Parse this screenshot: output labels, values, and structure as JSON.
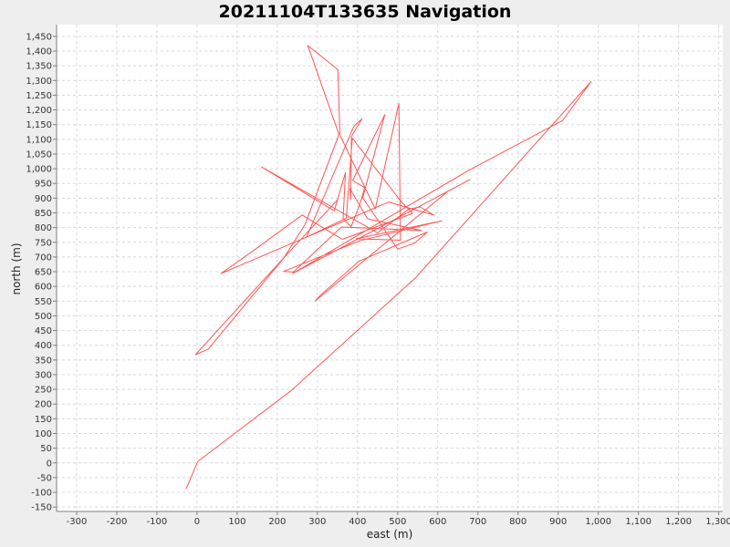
{
  "chart_data": {
    "type": "line",
    "title": "20211104T133635 Navigation",
    "xlabel": "east (m)",
    "ylabel": "north (m)",
    "xlim": [
      -350,
      1310
    ],
    "ylim": [
      -165,
      1490
    ],
    "grid": true,
    "x_ticks": [
      -300,
      -200,
      -100,
      0,
      100,
      200,
      300,
      400,
      500,
      600,
      700,
      800,
      900,
      1000,
      1100,
      1200,
      1300
    ],
    "x_tick_labels": [
      "-300",
      "-200",
      "-100",
      "0",
      "100",
      "200",
      "300",
      "400",
      "500",
      "600",
      "700",
      "800",
      "900",
      "1,000",
      "1,100",
      "1,200",
      "1,300"
    ],
    "y_ticks": [
      -150,
      -100,
      -50,
      0,
      50,
      100,
      150,
      200,
      250,
      300,
      350,
      400,
      450,
      500,
      550,
      600,
      650,
      700,
      750,
      800,
      850,
      900,
      950,
      1000,
      1050,
      1100,
      1150,
      1200,
      1250,
      1300,
      1350,
      1400,
      1450
    ],
    "y_tick_labels": [
      "-150",
      "-100",
      "-50",
      "0",
      "50",
      "100",
      "150",
      "200",
      "250",
      "300",
      "350",
      "400",
      "450",
      "500",
      "550",
      "600",
      "650",
      "700",
      "750",
      "800",
      "850",
      "900",
      "950",
      "1,000",
      "1,050",
      "1,100",
      "1,150",
      "1,200",
      "1,250",
      "1,300",
      "1,350",
      "1,400",
      "1,450"
    ],
    "series": [
      {
        "color": "#ff5555",
        "points": [
          [
            -27,
            -88
          ],
          [
            2,
            5
          ],
          [
            234,
            245
          ],
          [
            545,
            630
          ],
          [
            982,
            1297
          ],
          [
            911,
            1164
          ],
          [
            679,
            996
          ],
          [
            238,
            644
          ],
          [
            680,
            963
          ],
          [
            627,
            925
          ],
          [
            295,
            551
          ],
          [
            309,
            572
          ],
          [
            404,
            686
          ],
          [
            574,
            785
          ],
          [
            542,
            747
          ],
          [
            500,
            727
          ],
          [
            413,
            901
          ],
          [
            468,
            1184
          ],
          [
            388,
            960
          ],
          [
            418,
            936
          ],
          [
            406,
            880
          ],
          [
            384,
            803
          ],
          [
            364,
            830
          ],
          [
            370,
            987
          ],
          [
            342,
            857
          ],
          [
            161,
            1006
          ],
          [
            450,
            782
          ],
          [
            528,
            863
          ],
          [
            556,
            870
          ],
          [
            590,
            843
          ],
          [
            555,
            856
          ],
          [
            478,
            887
          ],
          [
            60,
            644
          ],
          [
            141,
            722
          ],
          [
            262,
            843
          ],
          [
            362,
            760
          ],
          [
            537,
            848
          ],
          [
            510,
            886
          ],
          [
            387,
            1104
          ],
          [
            372,
            832
          ],
          [
            273,
            768
          ],
          [
            391,
            1145
          ],
          [
            411,
            1170
          ],
          [
            385,
            1110
          ],
          [
            383,
            895
          ],
          [
            381,
            932
          ],
          [
            425,
            830
          ],
          [
            560,
            790
          ],
          [
            360,
            802
          ],
          [
            240,
            649
          ],
          [
            216,
            651
          ],
          [
            405,
            755
          ],
          [
            610,
            823
          ],
          [
            397,
            762
          ],
          [
            507,
            757
          ],
          [
            503,
            1222
          ],
          [
            444,
            863
          ],
          [
            356,
            1115
          ],
          [
            351,
            1337
          ],
          [
            276,
            1419
          ],
          [
            353,
            1119
          ],
          [
            351,
            1107
          ],
          [
            269,
            810
          ],
          [
            216,
            696
          ],
          [
            28,
            387
          ],
          [
            -4,
            368
          ],
          [
            218,
            700
          ],
          [
            352,
            897
          ]
        ]
      }
    ]
  }
}
